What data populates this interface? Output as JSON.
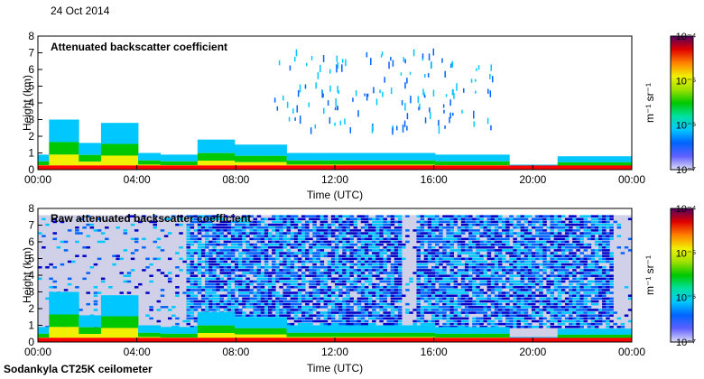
{
  "date_label": "24 Oct 2014",
  "footer_label": "Sodankyla CT25K ceilometer",
  "colors": {
    "background_noise": "#d0d0e8",
    "colormap": [
      "#e0e0f8",
      "#0000c8",
      "#0064ff",
      "#00c8ff",
      "#00e0a0",
      "#00c800",
      "#80e000",
      "#f0f000",
      "#ff8000",
      "#ff0000",
      "#a00000",
      "#500060"
    ]
  },
  "chart_data": [
    {
      "type": "heatmap",
      "title": "Attenuated backscatter coefficient",
      "xlabel": "Time (UTC)",
      "ylabel": "Height (km)",
      "x_ticks": [
        "00:00",
        "04:00",
        "08:00",
        "12:00",
        "16:00",
        "20:00",
        "00:00"
      ],
      "xlim_hours": [
        0,
        24
      ],
      "y_ticks": [
        "0",
        "1",
        "2",
        "3",
        "4",
        "5",
        "6",
        "7",
        "8"
      ],
      "ylim": [
        0,
        8
      ],
      "colorbar": {
        "ticks": [
          "10⁻⁴",
          "10⁻⁵",
          "10⁻⁶",
          "10⁻⁷"
        ],
        "unit": "m⁻¹ sr⁻¹",
        "scale": "log",
        "range": [
          1e-07,
          0.0001
        ]
      },
      "noise_filtered": true
    },
    {
      "type": "heatmap",
      "title": "Raw attenuated backscatter coefficient",
      "xlabel": "Time (UTC)",
      "ylabel": "Height (km)",
      "x_ticks": [
        "00:00",
        "04:00",
        "08:00",
        "12:00",
        "16:00",
        "20:00",
        "00:00"
      ],
      "xlim_hours": [
        0,
        24
      ],
      "y_ticks": [
        "0",
        "1",
        "2",
        "3",
        "4",
        "5",
        "6",
        "7",
        "8"
      ],
      "ylim": [
        0,
        8
      ],
      "colorbar": {
        "ticks": [
          "10⁻⁴",
          "10⁻⁵",
          "10⁻⁶",
          "10⁻⁷"
        ],
        "unit": "m⁻¹ sr⁻¹",
        "scale": "log",
        "range": [
          1e-07,
          0.0001
        ]
      },
      "noise_filtered": false
    }
  ]
}
